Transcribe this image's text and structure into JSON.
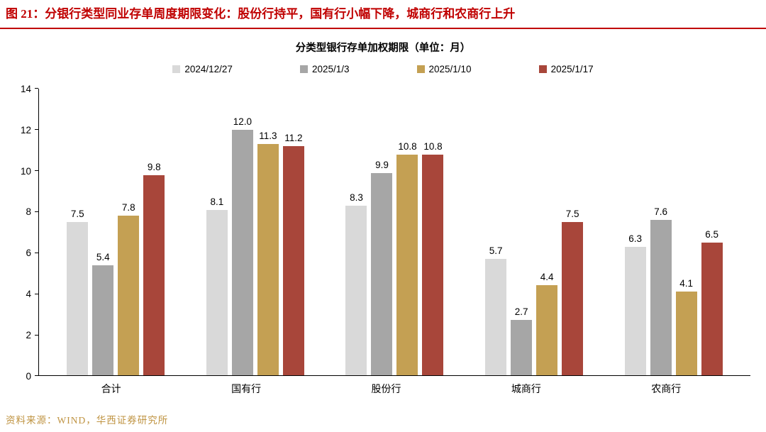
{
  "header": {
    "title": "图 21：分银行类型同业存单周度期限变化：股份行持平，国有行小幅下降，城商行和农商行上升"
  },
  "chart_data": {
    "type": "bar",
    "title": "分类型银行存单加权期限（单位：月）",
    "categories": [
      "合计",
      "国有行",
      "股份行",
      "城商行",
      "农商行"
    ],
    "series": [
      {
        "name": "2024/12/27",
        "color": "#d9d9d9",
        "values": [
          7.5,
          8.1,
          8.3,
          5.7,
          6.3
        ]
      },
      {
        "name": "2025/1/3",
        "color": "#a6a6a6",
        "values": [
          5.4,
          12.0,
          9.9,
          2.7,
          7.6
        ]
      },
      {
        "name": "2025/1/10",
        "color": "#c4a053",
        "values": [
          7.8,
          11.3,
          10.8,
          4.4,
          4.1
        ]
      },
      {
        "name": "2025/1/17",
        "color": "#a8463a",
        "values": [
          9.8,
          11.2,
          10.8,
          7.5,
          6.5
        ]
      }
    ],
    "ylim": [
      0,
      14
    ],
    "ytick_step": 2,
    "legend_position": "top",
    "grid": false,
    "value_label_decimals": 1
  },
  "footer": {
    "source": "资料来源：WIND，华西证券研究所"
  },
  "colors": {
    "title_red": "#c00000",
    "divider_red": "#c00000",
    "source_gold": "#bf9341"
  }
}
